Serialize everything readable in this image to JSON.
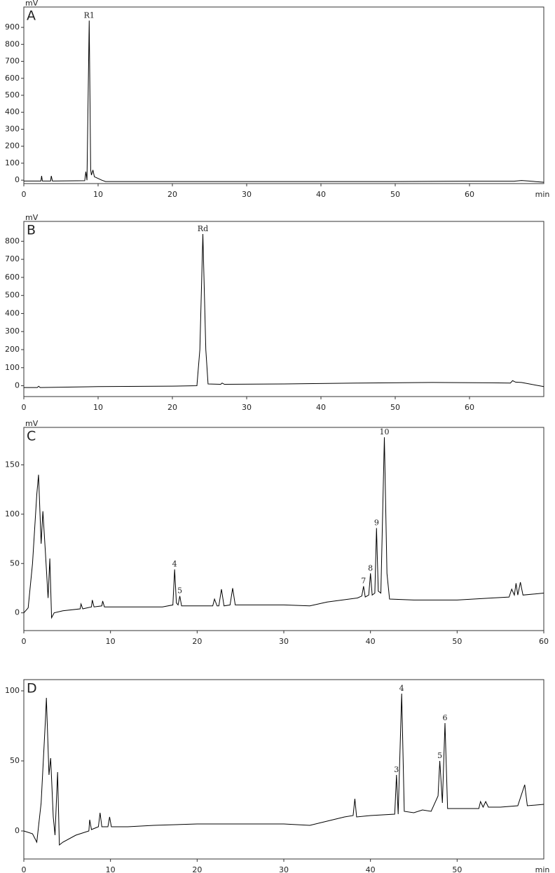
{
  "chart_data": [
    {
      "type": "line",
      "panel_label": "A",
      "y_label": "mV",
      "x_label": "min",
      "color": "#000000",
      "x": [
        0,
        2.3,
        2.4,
        2.5,
        3.6,
        3.7,
        3.85,
        8.2,
        8.35,
        8.5,
        8.8,
        9.0,
        9.1,
        9.3,
        9.5,
        10,
        10.5,
        11,
        20,
        30,
        40,
        50,
        60,
        66,
        67,
        68,
        70
      ],
      "values": [
        -5,
        -5,
        25,
        -5,
        -5,
        25,
        -5,
        -3,
        50,
        0,
        940,
        60,
        30,
        60,
        20,
        10,
        0,
        -8,
        -8,
        -8,
        -8,
        -8,
        -6,
        -6,
        -2,
        -5,
        -12
      ],
      "xlim": [
        0,
        70
      ],
      "ylim": [
        -20,
        1020
      ],
      "xticks": [
        0,
        10,
        20,
        30,
        40,
        50,
        60
      ],
      "yticks": [
        0,
        100,
        200,
        300,
        400,
        500,
        600,
        700,
        800,
        900
      ],
      "annotations": [
        {
          "text": "R1",
          "x": 8.8,
          "y": 940
        }
      ]
    },
    {
      "type": "line",
      "panel_label": "B",
      "y_label": "mV",
      "color": "#000000",
      "x": [
        0,
        1.8,
        2,
        2.2,
        10,
        20,
        23.3,
        23.7,
        24.1,
        24.5,
        24.8,
        26.5,
        26.7,
        27,
        35,
        45,
        55,
        63,
        65.5,
        65.8,
        66.2,
        67,
        70
      ],
      "values": [
        -10,
        -10,
        -3,
        -10,
        -5,
        -2,
        0,
        200,
        840,
        200,
        10,
        8,
        15,
        8,
        10,
        15,
        18,
        16,
        15,
        28,
        20,
        18,
        -5
      ],
      "xlim": [
        0,
        70
      ],
      "ylim": [
        -60,
        910
      ],
      "xticks": [
        0,
        10,
        20,
        30,
        40,
        50,
        60
      ],
      "yticks": [
        0,
        100,
        200,
        300,
        400,
        500,
        600,
        700,
        800
      ],
      "annotations": [
        {
          "text": "Rd",
          "x": 24.1,
          "y": 840
        }
      ]
    },
    {
      "type": "line",
      "panel_label": "C",
      "y_label": "mV",
      "color": "#000000",
      "x": [
        0,
        0.5,
        1.0,
        1.5,
        1.7,
        2.0,
        2.2,
        2.5,
        2.8,
        3.0,
        3.2,
        3.5,
        4.5,
        6.5,
        6.6,
        6.8,
        7.8,
        7.9,
        8.1,
        9,
        9.1,
        9.3,
        12,
        16,
        17.2,
        17.4,
        17.6,
        17.8,
        18.0,
        18.2,
        21.8,
        22.0,
        22.3,
        22.5,
        22.8,
        23.1,
        23.8,
        24.1,
        24.4,
        30,
        33,
        35,
        38.5,
        39.0,
        39.2,
        39.4,
        39.8,
        40.0,
        40.2,
        40.5,
        40.7,
        40.9,
        41.2,
        41.6,
        41.9,
        42.2,
        45,
        50,
        54,
        56,
        56.3,
        56.6,
        56.8,
        57,
        57.3,
        57.6,
        60
      ],
      "values": [
        0,
        5,
        50,
        120,
        140,
        70,
        103,
        60,
        15,
        55,
        -5,
        0,
        2,
        4,
        9,
        4,
        6,
        13,
        6,
        7,
        12,
        6,
        6,
        6,
        8,
        44,
        10,
        8,
        17,
        7,
        7,
        14,
        7,
        7,
        24,
        7,
        8,
        25,
        8,
        8,
        7,
        11,
        15,
        17,
        27,
        16,
        18,
        40,
        18,
        20,
        86,
        22,
        20,
        178,
        40,
        14,
        13,
        13,
        15,
        16,
        24,
        18,
        30,
        18,
        31,
        18,
        20
      ],
      "xlim": [
        0,
        60
      ],
      "ylim": [
        -18,
        188
      ],
      "xticks": [
        0,
        10,
        20,
        30,
        40,
        50,
        60
      ],
      "yticks": [
        0,
        50,
        100,
        150
      ],
      "annotations": [
        {
          "text": "4",
          "x": 17.4,
          "y": 44
        },
        {
          "text": "5",
          "x": 18.0,
          "y": 17
        },
        {
          "text": "7",
          "x": 39.2,
          "y": 27
        },
        {
          "text": "8",
          "x": 40.0,
          "y": 40
        },
        {
          "text": "9",
          "x": 40.7,
          "y": 86
        },
        {
          "text": "10",
          "x": 41.6,
          "y": 178
        }
      ]
    },
    {
      "type": "line",
      "panel_label": "D",
      "x_label": "min",
      "color": "#000000",
      "x": [
        0,
        1.0,
        1.5,
        2.0,
        2.5,
        2.6,
        2.9,
        3.1,
        3.4,
        3.6,
        3.9,
        4.1,
        4.5,
        6,
        7.5,
        7.6,
        7.8,
        8.6,
        8.8,
        9.0,
        9.7,
        9.9,
        10.1,
        12,
        15,
        20,
        25,
        30,
        33,
        35,
        37,
        38,
        38.2,
        38.4,
        40,
        42.8,
        43.0,
        43.2,
        43.6,
        43.9,
        45,
        46,
        47,
        47.8,
        48.0,
        48.3,
        48.6,
        48.9,
        50,
        52.5,
        52.7,
        53,
        53.3,
        53.6,
        55,
        57,
        57.8,
        58.1,
        60
      ],
      "values": [
        0,
        -2,
        -8,
        20,
        80,
        95,
        40,
        52,
        10,
        -3,
        42,
        -10,
        -8,
        -3,
        0,
        8,
        1,
        3,
        13,
        3,
        3,
        10,
        3,
        3,
        4,
        5,
        5,
        5,
        4,
        7,
        10,
        11,
        23,
        10,
        11,
        12,
        40,
        12,
        98,
        14,
        13,
        15,
        14,
        25,
        50,
        20,
        77,
        16,
        16,
        16,
        21,
        17,
        21,
        17,
        17,
        18,
        33,
        18,
        19
      ],
      "xlim": [
        0,
        60
      ],
      "ylim": [
        -20,
        108
      ],
      "xticks": [
        0,
        10,
        20,
        30,
        40,
        50
      ],
      "yticks": [
        0,
        50,
        100
      ],
      "annotations": [
        {
          "text": "3",
          "x": 43.0,
          "y": 40
        },
        {
          "text": "4",
          "x": 43.6,
          "y": 98
        },
        {
          "text": "5",
          "x": 48.0,
          "y": 50
        },
        {
          "text": "6",
          "x": 48.6,
          "y": 77
        }
      ]
    }
  ]
}
